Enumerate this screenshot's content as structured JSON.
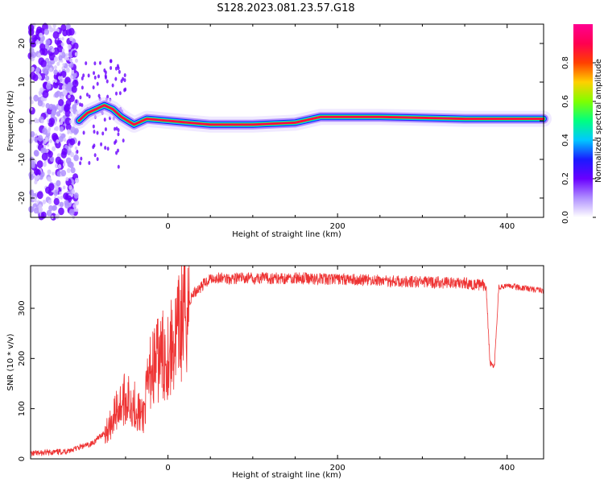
{
  "title": "S128.2023.081.23.57.G18",
  "colors": {
    "snr_line": "#ee3333",
    "colormap": [
      "#ffffff",
      "#b090ff",
      "#6a00ff",
      "#1a1aff",
      "#00c8ff",
      "#00ff80",
      "#7fff00",
      "#ffd000",
      "#ff4000",
      "#ff0050",
      "#ff0090"
    ]
  },
  "chart_data": [
    {
      "type": "heatmap",
      "title": "S128.2023.081.23.57.G18",
      "xlabel": "Height of straight line (km)",
      "ylabel": "Frequency (Hz)",
      "xlim": [
        -162,
        443
      ],
      "ylim": [
        -25,
        25
      ],
      "xticks": [
        0,
        200,
        400
      ],
      "yticks": [
        -20,
        -10,
        0,
        10,
        20
      ],
      "colorbar": {
        "label": "Normalized spectral amplitude",
        "range": [
          0,
          1
        ],
        "ticks": [
          "0.0",
          "0.2",
          "0.4",
          "0.6",
          "0.8"
        ]
      },
      "ridge": [
        {
          "x": -105,
          "f": 0
        },
        {
          "x": -95,
          "f": 2
        },
        {
          "x": -85,
          "f": 3
        },
        {
          "x": -75,
          "f": 4
        },
        {
          "x": -65,
          "f": 3
        },
        {
          "x": -55,
          "f": 1
        },
        {
          "x": -40,
          "f": -1
        },
        {
          "x": -25,
          "f": 0.5
        },
        {
          "x": 0,
          "f": 0
        },
        {
          "x": 50,
          "f": -1
        },
        {
          "x": 100,
          "f": -1
        },
        {
          "x": 150,
          "f": -0.5
        },
        {
          "x": 180,
          "f": 1
        },
        {
          "x": 250,
          "f": 1
        },
        {
          "x": 350,
          "f": 0.5
        },
        {
          "x": 443,
          "f": 0.5
        }
      ]
    },
    {
      "type": "line",
      "xlabel": "Height of straight line (km)",
      "ylabel": "SNR (10 * v/v)",
      "xlim": [
        -162,
        443
      ],
      "ylim": [
        0,
        385
      ],
      "xticks": [
        0,
        200,
        400
      ],
      "yticks": [
        0,
        100,
        200,
        300
      ],
      "x": [
        -162,
        -120,
        -90,
        -70,
        -60,
        -50,
        -40,
        -30,
        -20,
        -10,
        0,
        10,
        20,
        30,
        50,
        100,
        150,
        200,
        250,
        300,
        350,
        375,
        380,
        385,
        390,
        400,
        420,
        443
      ],
      "y": [
        10,
        15,
        30,
        60,
        100,
        120,
        110,
        80,
        180,
        200,
        210,
        240,
        290,
        330,
        360,
        360,
        360,
        358,
        355,
        352,
        350,
        345,
        190,
        185,
        340,
        345,
        340,
        335
      ]
    }
  ]
}
